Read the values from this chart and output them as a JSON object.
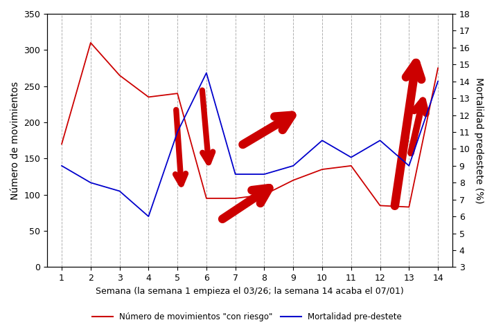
{
  "weeks": [
    1,
    2,
    3,
    4,
    5,
    6,
    7,
    8,
    9,
    10,
    11,
    12,
    13,
    14
  ],
  "movimientos": [
    170,
    310,
    265,
    235,
    240,
    95,
    95,
    100,
    120,
    135,
    140,
    85,
    83,
    275
  ],
  "mortalidad_pct": [
    9.0,
    8.0,
    7.5,
    6.0,
    11.0,
    14.5,
    8.5,
    8.5,
    9.0,
    10.5,
    9.5,
    10.5,
    9.0,
    14.0
  ],
  "red_color": "#cc0000",
  "blue_color": "#0000cc",
  "background_color": "#ffffff",
  "grid_color": "#b0b0b0",
  "left_ylim": [
    0,
    350
  ],
  "right_ylim": [
    3,
    18
  ],
  "left_yticks": [
    0,
    50,
    100,
    150,
    200,
    250,
    300,
    350
  ],
  "right_yticks": [
    3,
    4,
    5,
    6,
    7,
    8,
    9,
    10,
    11,
    12,
    13,
    14,
    15,
    16,
    17,
    18
  ],
  "xlabel": "Semana (la semana 1 empieza el 03/26; la semana 14 acaba el 07/01)",
  "ylabel_left": "Número de movimientos",
  "ylabel_right": "Mortalidad predestete (%)",
  "legend_red": "Número de movimientos \"con riesgo\"",
  "legend_blue": "Mortalidad pre-destete",
  "arrows": [
    {
      "xtail": 4.95,
      "ytail": 220,
      "xhead": 5.15,
      "yhead": 103,
      "lw": 6
    },
    {
      "xtail": 5.85,
      "ytail": 247,
      "xhead": 6.1,
      "yhead": 133,
      "lw": 6
    },
    {
      "xtail": 6.5,
      "ytail": 65,
      "xhead": 8.5,
      "yhead": 118,
      "lw": 9
    },
    {
      "xtail": 7.2,
      "ytail": 168,
      "xhead": 9.3,
      "yhead": 218,
      "lw": 9
    },
    {
      "xtail": 12.5,
      "ytail": 82,
      "xhead": 13.3,
      "yhead": 298,
      "lw": 9
    },
    {
      "xtail": 13.05,
      "ytail": 155,
      "xhead": 13.55,
      "yhead": 243,
      "lw": 7
    }
  ]
}
